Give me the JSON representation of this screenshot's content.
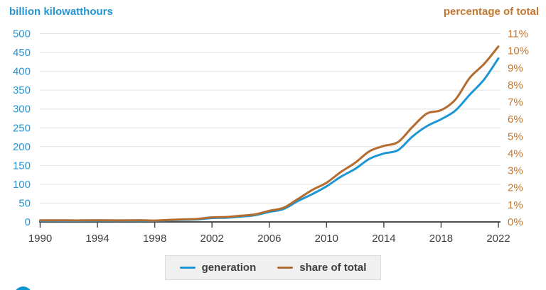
{
  "chart_data": {
    "type": "line",
    "grid": true,
    "grid_color": "#e2e2e2",
    "axis_color": "#4d4d4d",
    "left_axis": {
      "title": "billion kilowatthours",
      "color": "#2397d4",
      "min": 0,
      "max": 500,
      "ticks": [
        0,
        50,
        100,
        150,
        200,
        250,
        300,
        350,
        400,
        450,
        500
      ]
    },
    "right_axis": {
      "title": "percentage of total",
      "color": "#c4772f",
      "min": 0,
      "max": 11,
      "tick_suffix": "%",
      "ticks": [
        0,
        1,
        2,
        3,
        4,
        5,
        6,
        7,
        8,
        9,
        10,
        11
      ]
    },
    "x_axis": {
      "min": 1990,
      "max": 2022,
      "label_color": "#3f3f3f",
      "tick_years": [
        1990,
        1994,
        1998,
        2002,
        2006,
        2010,
        2014,
        2018,
        2022
      ]
    },
    "years": [
      1990,
      1991,
      1992,
      1993,
      1994,
      1995,
      1996,
      1997,
      1998,
      1999,
      2000,
      2001,
      2002,
      2003,
      2004,
      2005,
      2006,
      2007,
      2008,
      2009,
      2010,
      2011,
      2012,
      2013,
      2014,
      2015,
      2016,
      2017,
      2018,
      2019,
      2020,
      2021,
      2022
    ],
    "series": [
      {
        "name": "generation",
        "axis": "left",
        "color": "#1e96d5",
        "values": [
          2.8,
          3.0,
          2.9,
          3.0,
          3.4,
          3.2,
          3.2,
          3.3,
          3.0,
          4.5,
          5.6,
          6.7,
          10.4,
          11.2,
          14.1,
          17.8,
          26.6,
          34.4,
          55.4,
          73.9,
          94.6,
          120.2,
          140.8,
          167.8,
          181.7,
          190.7,
          226.9,
          254.3,
          272.7,
          295.9,
          337.9,
          378.2,
          434.3
        ]
      },
      {
        "name": "share of total",
        "axis": "right",
        "color": "#b36b2e",
        "values": [
          0.09,
          0.09,
          0.09,
          0.09,
          0.1,
          0.09,
          0.09,
          0.1,
          0.08,
          0.12,
          0.15,
          0.18,
          0.27,
          0.29,
          0.36,
          0.44,
          0.65,
          0.83,
          1.34,
          1.87,
          2.29,
          2.92,
          3.46,
          4.13,
          4.44,
          4.67,
          5.55,
          6.33,
          6.53,
          7.15,
          8.42,
          9.23,
          10.25
        ]
      }
    ],
    "legend": {
      "position": "bottom",
      "background": "#f0f0f0",
      "border_color": "#dcdcdc",
      "text_color": "#3f3f3f"
    }
  },
  "branding": {
    "logo": "eia-logo-circle",
    "color": "#0c96d3"
  }
}
